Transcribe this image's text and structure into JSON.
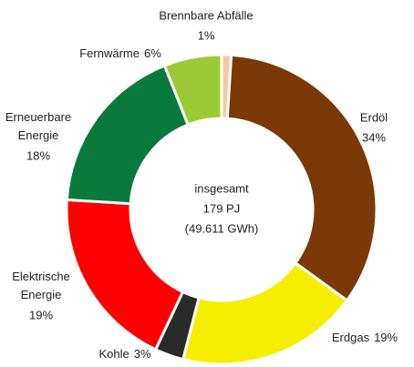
{
  "chart_data": {
    "type": "donut",
    "categories": [
      "Brennbare Abfälle",
      "Erdöl",
      "Erdgas",
      "Kohle",
      "Elektrische Energie",
      "Erneuerbare Energie",
      "Fernwärme"
    ],
    "values": [
      1,
      34,
      19,
      3,
      19,
      18,
      6
    ],
    "value_labels": [
      "1%",
      "34%",
      "19%",
      "3%",
      "19%",
      "18%",
      "6%"
    ],
    "colors": [
      "#f5c9a6",
      "#7a3907",
      "#f5ee00",
      "#2a2a2a",
      "#fe0000",
      "#0a7a3c",
      "#9bcb34"
    ],
    "center_text": [
      "insgesamt",
      "179 PJ",
      "(49.611 GWh)"
    ]
  }
}
